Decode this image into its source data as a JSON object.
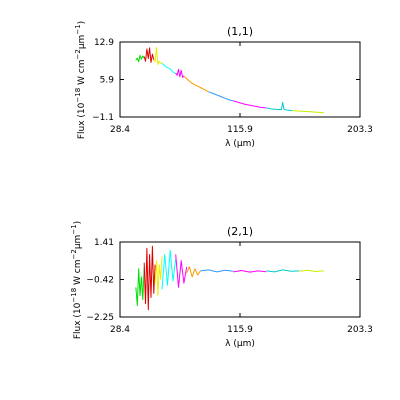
{
  "chart_data": [
    {
      "type": "line",
      "title": "(1,1)",
      "xlabel": "λ (μm)",
      "ylabel_main": "Flux (10",
      "ylabel_exp1": "−18",
      "ylabel_mid": " W cm",
      "ylabel_exp2": "−2",
      "ylabel_unit": "μm",
      "ylabel_exp3": "−1",
      "ylabel_close": ")",
      "xlim": [
        28.4,
        203.3
      ],
      "ylim": [
        -1.1,
        12.9
      ],
      "xticks": [
        28.4,
        115.9,
        203.3
      ],
      "xtick_labels": [
        "28.4",
        "115.9",
        "203.3"
      ],
      "yticks": [
        -1.1,
        5.9,
        12.9
      ],
      "ytick_labels": [
        "−1.1",
        "5.9",
        "12.9"
      ],
      "grid": false,
      "series": [
        {
          "color": "#00dd00",
          "x": [
            40,
            41,
            42,
            43,
            44,
            45,
            46
          ],
          "y": [
            9.5,
            9.9,
            9.2,
            10.4,
            9.7,
            10.3,
            9.9
          ]
        },
        {
          "color": "#dd0000",
          "x": [
            46,
            47,
            48,
            49,
            50,
            51,
            52,
            53
          ],
          "y": [
            10.2,
            9.3,
            11.6,
            9.8,
            11.8,
            9.1,
            10.6,
            9.6
          ]
        },
        {
          "color": "#eeee00",
          "x": [
            53,
            54,
            55,
            56,
            57,
            58,
            59
          ],
          "y": [
            9.6,
            9.2,
            11.9,
            8.7,
            9.3,
            8.9,
            9.1
          ]
        },
        {
          "color": "#00ffff",
          "x": [
            59,
            61,
            63,
            65,
            67,
            69
          ],
          "y": [
            8.9,
            8.5,
            8.1,
            7.9,
            7.3,
            7.0
          ]
        },
        {
          "color": "#ff00ff",
          "x": [
            69,
            70,
            71,
            72,
            73,
            74,
            75
          ],
          "y": [
            7.1,
            6.7,
            7.8,
            6.4,
            7.6,
            6.3,
            6.6
          ]
        },
        {
          "color": "#ff9900",
          "x": [
            75,
            78,
            81,
            84,
            87,
            90,
            93
          ],
          "y": [
            6.5,
            5.8,
            5.2,
            4.8,
            4.4,
            4.0,
            3.6
          ]
        },
        {
          "color": "#3399ff",
          "x": [
            93,
            96,
            99,
            102,
            105,
            108,
            111
          ],
          "y": [
            3.6,
            3.3,
            3.0,
            2.7,
            2.4,
            2.1,
            1.9
          ]
        },
        {
          "color": "#ff00ff",
          "x": [
            111,
            115,
            119,
            123,
            127,
            131,
            135
          ],
          "y": [
            1.9,
            1.6,
            1.3,
            1.1,
            0.9,
            0.7,
            0.6
          ]
        },
        {
          "color": "#00cccc",
          "x": [
            135,
            139,
            143,
            146,
            147,
            148,
            150,
            154
          ],
          "y": [
            0.6,
            0.4,
            0.3,
            0.3,
            1.6,
            0.3,
            0.2,
            0.1
          ]
        },
        {
          "color": "#ccee00",
          "x": [
            154,
            160,
            166,
            172,
            177
          ],
          "y": [
            0.1,
            0.0,
            -0.1,
            -0.2,
            -0.3
          ]
        }
      ]
    },
    {
      "type": "line",
      "title": "(2,1)",
      "xlabel": "λ (μm)",
      "ylabel_main": "Flux (10",
      "ylabel_exp1": "−18",
      "ylabel_mid": " W cm",
      "ylabel_exp2": "−2",
      "ylabel_unit": "μm",
      "ylabel_exp3": "−1",
      "ylabel_close": ")",
      "xlim": [
        28.4,
        203.3
      ],
      "ylim": [
        -2.25,
        1.41
      ],
      "xticks": [
        28.4,
        115.9,
        203.3
      ],
      "xtick_labels": [
        "28.4",
        "115.9",
        "203.3"
      ],
      "yticks": [
        -2.25,
        -0.42,
        1.41
      ],
      "ytick_labels": [
        "−2.25",
        "−0.42",
        "1.41"
      ],
      "grid": false,
      "series": [
        {
          "color": "#00dd00",
          "x": [
            40,
            41,
            42,
            43,
            44,
            45,
            46
          ],
          "y": [
            -0.8,
            -1.7,
            0.1,
            -1.2,
            -0.3,
            -1.4,
            0.2
          ]
        },
        {
          "color": "#dd0000",
          "x": [
            46,
            47,
            48,
            49,
            50,
            51,
            52,
            53,
            54
          ],
          "y": [
            0.4,
            -1.6,
            1.1,
            -1.9,
            0.8,
            -1.3,
            1.2,
            -1.1,
            0.3
          ]
        },
        {
          "color": "#eeee00",
          "x": [
            54,
            55,
            56,
            57,
            58,
            59
          ],
          "y": [
            -0.6,
            0.5,
            -1.2,
            0.3,
            -0.4,
            0.7
          ]
        },
        {
          "color": "#00ffff",
          "x": [
            59,
            61,
            63,
            65,
            67,
            69
          ],
          "y": [
            -0.9,
            0.8,
            -0.7,
            1.0,
            -0.5,
            0.6
          ]
        },
        {
          "color": "#ff00ff",
          "x": [
            69,
            71,
            73,
            75,
            77
          ],
          "y": [
            0.8,
            -0.8,
            0.5,
            -0.6,
            0.2
          ]
        },
        {
          "color": "#ff9900",
          "x": [
            77,
            79,
            81,
            83,
            85,
            87
          ],
          "y": [
            -0.1,
            0.2,
            -0.3,
            0.1,
            -0.2,
            0.0
          ]
        },
        {
          "color": "#3399ff",
          "x": [
            87,
            93,
            99,
            105,
            111
          ],
          "y": [
            0.0,
            0.05,
            -0.05,
            0.03,
            -0.02
          ]
        },
        {
          "color": "#ff00ff",
          "x": [
            111,
            117,
            123,
            129,
            135
          ],
          "y": [
            -0.05,
            0.02,
            -0.06,
            0.0,
            -0.04
          ]
        },
        {
          "color": "#00cccc",
          "x": [
            135,
            141,
            147,
            153,
            159
          ],
          "y": [
            0.0,
            -0.05,
            0.05,
            -0.02,
            0.0
          ]
        },
        {
          "color": "#ccee00",
          "x": [
            159,
            165,
            171,
            177
          ],
          "y": [
            -0.02,
            0.03,
            -0.03,
            0.0
          ]
        }
      ]
    }
  ]
}
